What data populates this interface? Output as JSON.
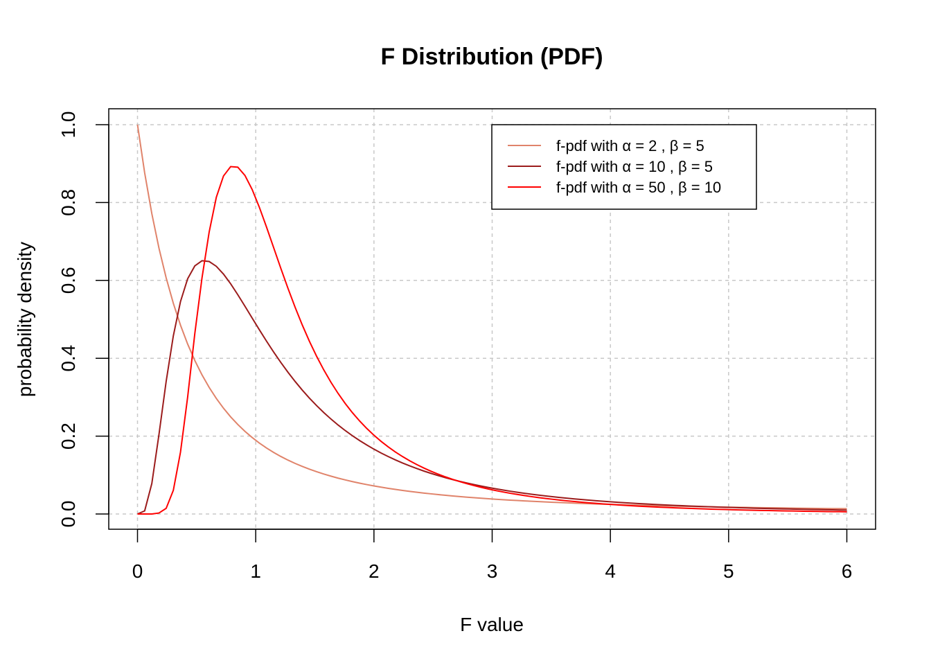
{
  "chart_data": {
    "type": "line",
    "title": "F Distribution (PDF)",
    "xlabel": "F value",
    "ylabel": "probability density",
    "xlim": [
      0,
      6
    ],
    "ylim": [
      0,
      1
    ],
    "x_ticks": [
      "0",
      "1",
      "2",
      "3",
      "4",
      "5",
      "6"
    ],
    "y_ticks": [
      "0.0",
      "0.2",
      "0.4",
      "0.6",
      "0.8",
      "1.0"
    ],
    "grid": true,
    "legend_position": "top-right",
    "x": [
      0.0,
      0.0606,
      0.1212,
      0.1818,
      0.2424,
      0.303,
      0.3636,
      0.4242,
      0.4848,
      0.5455,
      0.6061,
      0.6667,
      0.7273,
      0.7879,
      0.8485,
      0.9091,
      0.9697,
      1.0303,
      1.0909,
      1.1515,
      1.2121,
      1.2727,
      1.3333,
      1.3939,
      1.4545,
      1.5152,
      1.5758,
      1.6364,
      1.697,
      1.7576,
      1.8182,
      1.8788,
      1.9394,
      2.0,
      2.0606,
      2.1212,
      2.1818,
      2.2424,
      2.303,
      2.3636,
      2.4242,
      2.4848,
      2.5455,
      2.6061,
      2.6667,
      2.7273,
      2.7879,
      2.8485,
      2.9091,
      2.9697,
      3.0303,
      3.0909,
      3.1515,
      3.2121,
      3.2727,
      3.3333,
      3.3939,
      3.4545,
      3.5152,
      3.5758,
      3.6364,
      3.697,
      3.7576,
      3.8182,
      3.8788,
      3.9394,
      4.0,
      4.0606,
      4.1212,
      4.1818,
      4.2424,
      4.303,
      4.3636,
      4.4242,
      4.4848,
      4.5455,
      4.6061,
      4.6667,
      4.7273,
      4.7879,
      4.8485,
      4.9091,
      4.9697,
      5.0303,
      5.0909,
      5.1515,
      5.2121,
      5.2727,
      5.3333,
      5.3939,
      5.4545,
      5.5152,
      5.5758,
      5.6364,
      5.697,
      5.7576,
      5.8182,
      5.8788,
      5.9394,
      6.0
    ],
    "series": [
      {
        "name": "f-pdf with α = 2 , β = 5",
        "color": "#E0836A",
        "values": [
          1.0,
          0.8763,
          0.7715,
          0.6825,
          0.6065,
          0.5413,
          0.4851,
          0.4365,
          0.3943,
          0.3574,
          0.3252,
          0.2968,
          0.2717,
          0.2495,
          0.2298,
          0.2122,
          0.1965,
          0.1823,
          0.1696,
          0.1582,
          0.1478,
          0.1384,
          0.1299,
          0.1222,
          0.1151,
          0.1086,
          0.1026,
          0.0972,
          0.0921,
          0.0875,
          0.0832,
          0.0792,
          0.0755,
          0.072,
          0.0689,
          0.0659,
          0.0631,
          0.0605,
          0.0581,
          0.0558,
          0.0537,
          0.0517,
          0.0498,
          0.048,
          0.0463,
          0.0447,
          0.0432,
          0.0418,
          0.0404,
          0.0391,
          0.0379,
          0.0368,
          0.0357,
          0.0346,
          0.0336,
          0.0327,
          0.0318,
          0.0309,
          0.0301,
          0.0293,
          0.0286,
          0.0278,
          0.0271,
          0.0265,
          0.0259,
          0.0252,
          0.0247,
          0.0241,
          0.0236,
          0.023,
          0.0225,
          0.022,
          0.0216,
          0.0211,
          0.0207,
          0.0203,
          0.0199,
          0.0195,
          0.0191,
          0.0187,
          0.0184,
          0.0181,
          0.0177,
          0.0174,
          0.0171,
          0.0168,
          0.0165,
          0.0162,
          0.016,
          0.0157,
          0.0155,
          0.0152,
          0.015,
          0.0147,
          0.0145,
          0.0143,
          0.0141,
          0.0139,
          0.0137,
          0.0135
        ]
      },
      {
        "name": "f-pdf with α = 10 , β = 5",
        "color": "#9B1B1B",
        "values": [
          0.0,
          0.0079,
          0.0783,
          0.2047,
          0.3405,
          0.4575,
          0.5456,
          0.6042,
          0.6373,
          0.6505,
          0.6486,
          0.6362,
          0.6162,
          0.5913,
          0.5632,
          0.5336,
          0.5034,
          0.4734,
          0.4442,
          0.4161,
          0.3893,
          0.3641,
          0.3404,
          0.3182,
          0.2975,
          0.2783,
          0.2605,
          0.2439,
          0.2285,
          0.2142,
          0.201,
          0.1886,
          0.1772,
          0.1665,
          0.1566,
          0.1474,
          0.1389,
          0.1309,
          0.1235,
          0.1166,
          0.1101,
          0.1041,
          0.0985,
          0.0932,
          0.0883,
          0.0837,
          0.0794,
          0.0754,
          0.0716,
          0.068,
          0.0647,
          0.0616,
          0.0586,
          0.0559,
          0.0532,
          0.0508,
          0.0485,
          0.0463,
          0.0442,
          0.0423,
          0.0404,
          0.0387,
          0.0371,
          0.0355,
          0.034,
          0.0326,
          0.0313,
          0.0301,
          0.0289,
          0.0277,
          0.0267,
          0.0257,
          0.0247,
          0.0238,
          0.0229,
          0.0221,
          0.0213,
          0.0205,
          0.0198,
          0.0191,
          0.0184,
          0.0178,
          0.0172,
          0.0166,
          0.016,
          0.0155,
          0.015,
          0.0145,
          0.014,
          0.0136,
          0.0132,
          0.0128,
          0.0124,
          0.012,
          0.0116,
          0.0113,
          0.011,
          0.0106,
          0.0103,
          0.01
        ]
      },
      {
        "name": "f-pdf with α = 50 , β = 10",
        "color": "#FF0000",
        "values": [
          0.0,
          0.0,
          0.0,
          0.0025,
          0.0145,
          0.0607,
          0.1588,
          0.3005,
          0.4635,
          0.6063,
          0.7241,
          0.8136,
          0.8682,
          0.8923,
          0.8908,
          0.8695,
          0.8336,
          0.7881,
          0.7373,
          0.6842,
          0.6311,
          0.5797,
          0.5309,
          0.4854,
          0.4434,
          0.405,
          0.37,
          0.3383,
          0.3096,
          0.2836,
          0.2601,
          0.2389,
          0.2197,
          0.2023,
          0.1865,
          0.1722,
          0.1592,
          0.1474,
          0.1366,
          0.1268,
          0.1178,
          0.1096,
          0.1021,
          0.0952,
          0.0889,
          0.0831,
          0.0778,
          0.0728,
          0.0683,
          0.0641,
          0.0602,
          0.0566,
          0.0533,
          0.0502,
          0.0473,
          0.0446,
          0.0421,
          0.0398,
          0.0377,
          0.0356,
          0.0337,
          0.032,
          0.0303,
          0.0287,
          0.0273,
          0.0259,
          0.0246,
          0.0234,
          0.0222,
          0.0211,
          0.0201,
          0.0191,
          0.0182,
          0.0174,
          0.0166,
          0.0158,
          0.0151,
          0.0144,
          0.0137,
          0.0131,
          0.0125,
          0.012,
          0.0115,
          0.011,
          0.0105,
          0.01,
          0.0096,
          0.0092,
          0.0088,
          0.0084,
          0.0081,
          0.0078,
          0.0075,
          0.0072,
          0.0069,
          0.0066,
          0.0063,
          0.0061,
          0.0059,
          0.0056
        ]
      }
    ]
  }
}
